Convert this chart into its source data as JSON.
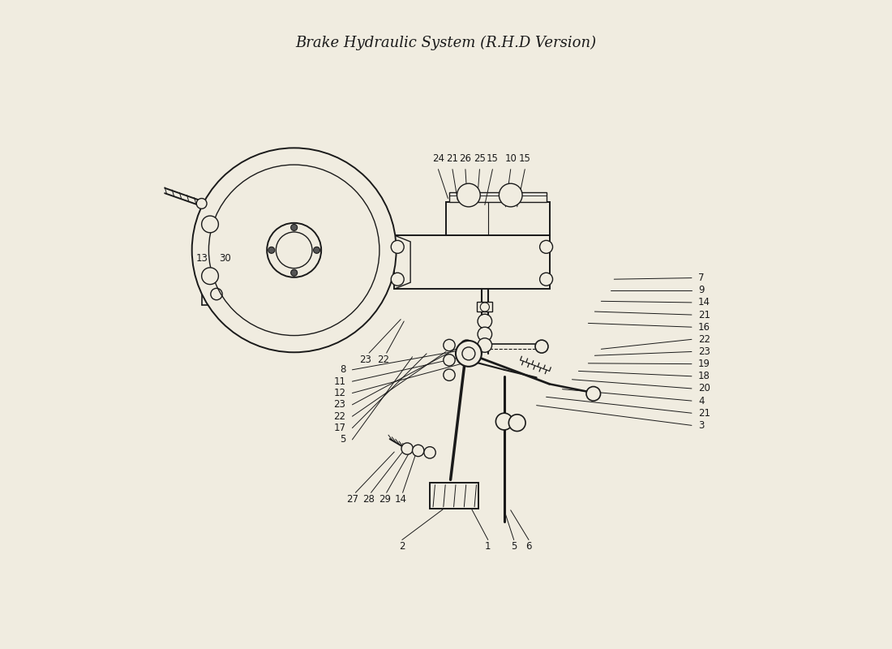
{
  "title": "Brake Hydraulic System (R.H.D Version)",
  "bg_color": "#f0ece0",
  "line_color": "#1a1a1a",
  "text_color": "#1a1a1a",
  "figsize": [
    11.0,
    8.0
  ],
  "dpi": 100
}
